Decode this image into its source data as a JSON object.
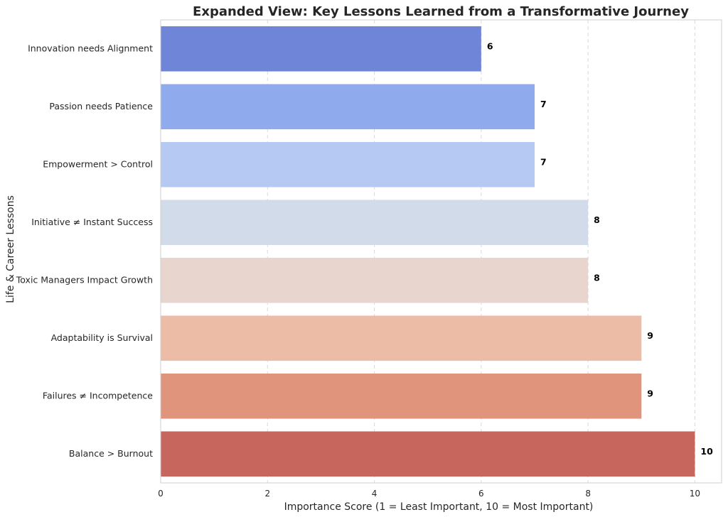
{
  "chart_data": {
    "type": "bar",
    "orientation": "horizontal",
    "title": "Expanded View: Key Lessons Learned from a Transformative Journey",
    "xlabel": "Importance Score (1 = Least Important, 10 = Most Important)",
    "ylabel": "Life & Career Lessons",
    "categories": [
      "Innovation needs Alignment",
      "Passion needs Patience",
      "Empowerment > Control",
      "Initiative ≠ Instant Success",
      "Toxic Managers Impact Growth",
      "Adaptability is Survival",
      "Failures ≠ Incompetence",
      "Balance > Burnout"
    ],
    "values": [
      6,
      7,
      7,
      8,
      8,
      9,
      9,
      10
    ],
    "data_labels": [
      "6",
      "7",
      "7",
      "8",
      "8",
      "9",
      "9",
      "10"
    ],
    "colors": [
      "#6f86d8",
      "#8fabee",
      "#b5c9f3",
      "#d1dbea",
      "#e7d5ce",
      "#edbca6",
      "#e0947b",
      "#c6665c"
    ],
    "xlim": [
      0,
      10.5
    ],
    "xticks": [
      0,
      2,
      4,
      6,
      8,
      10
    ],
    "xtick_labels": [
      "0",
      "2",
      "4",
      "6",
      "8",
      "10"
    ],
    "grid": "x-dashed",
    "legend": "none"
  }
}
